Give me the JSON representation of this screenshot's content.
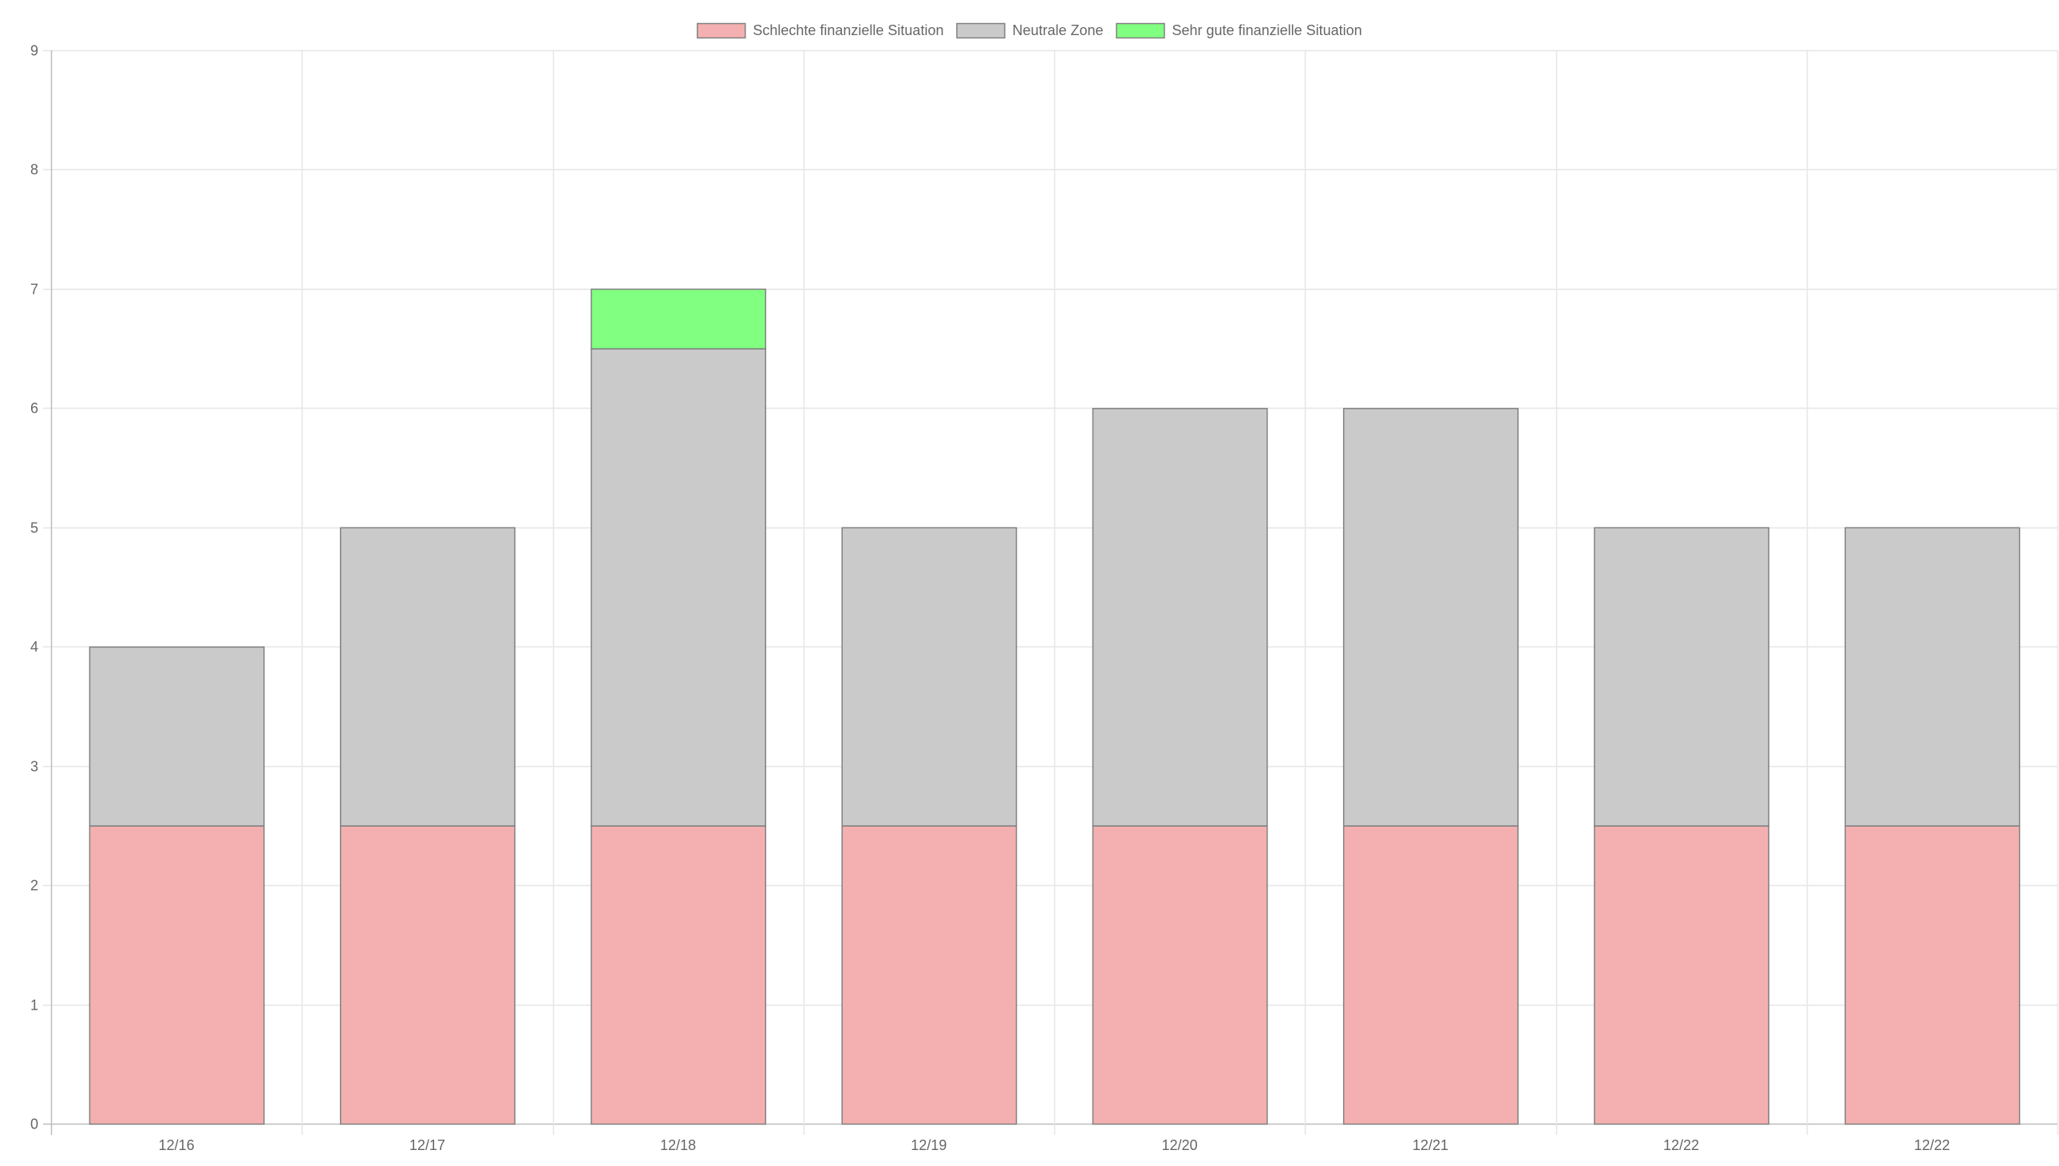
{
  "chart_data": {
    "type": "bar",
    "stacked": true,
    "title": "",
    "xlabel": "",
    "ylabel": "",
    "categories": [
      "12/16",
      "12/17",
      "12/18",
      "12/19",
      "12/20",
      "12/21",
      "12/22",
      "12/22"
    ],
    "series": [
      {
        "name": "Schlechte finanzielle Situation",
        "color": "#f4b0b0",
        "values": [
          2.5,
          2.5,
          2.5,
          2.5,
          2.5,
          2.5,
          2.5,
          2.5
        ]
      },
      {
        "name": "Neutrale Zone",
        "color": "#cacaca",
        "values": [
          1.5,
          2.5,
          4,
          2.5,
          3.5,
          3.5,
          2.5,
          2.5
        ]
      },
      {
        "name": "Sehr gute finanzielle Situation",
        "color": "#80ff80",
        "values": [
          0,
          0,
          0.5,
          0,
          0,
          0,
          0,
          0
        ]
      }
    ],
    "ylim": [
      0,
      9
    ],
    "yticks": [
      "0",
      "1",
      "2",
      "3",
      "4",
      "5",
      "6",
      "7",
      "8",
      "9"
    ],
    "grid": true,
    "legend_position": "top-center",
    "bar_border_color": "#808080",
    "grid_color": "#e6e6e6",
    "axis_color": "#bdbdbd"
  }
}
